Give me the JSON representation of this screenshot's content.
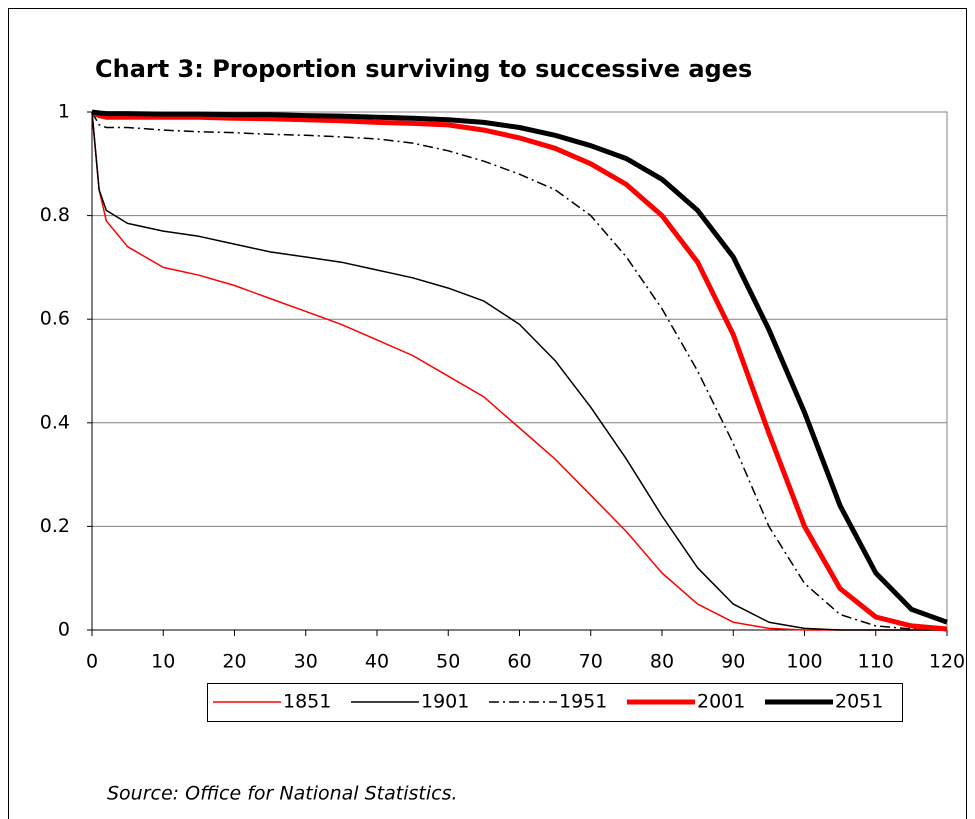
{
  "chart_data": {
    "type": "line",
    "title": "Chart 3: Proportion surviving to successive ages",
    "source": "Source: Office for National Statistics.",
    "x": [
      0,
      1,
      2,
      5,
      10,
      15,
      20,
      25,
      30,
      35,
      40,
      45,
      50,
      55,
      60,
      65,
      70,
      75,
      80,
      85,
      90,
      95,
      100,
      105,
      110,
      115,
      120
    ],
    "series": [
      {
        "name": "1851",
        "color": "#ff0000",
        "style": "solid",
        "weight": "thin",
        "values": [
          1,
          0.85,
          0.79,
          0.74,
          0.7,
          0.685,
          0.665,
          0.64,
          0.615,
          0.59,
          0.56,
          0.53,
          0.49,
          0.45,
          0.39,
          0.33,
          0.26,
          0.19,
          0.11,
          0.05,
          0.015,
          0.003,
          0,
          0,
          0,
          0,
          0
        ]
      },
      {
        "name": "1901",
        "color": "#000000",
        "style": "solid",
        "weight": "thin",
        "values": [
          1,
          0.85,
          0.81,
          0.785,
          0.77,
          0.76,
          0.745,
          0.73,
          0.72,
          0.71,
          0.695,
          0.68,
          0.66,
          0.635,
          0.59,
          0.52,
          0.43,
          0.33,
          0.22,
          0.12,
          0.05,
          0.015,
          0.003,
          0,
          0,
          0,
          0
        ]
      },
      {
        "name": "1951",
        "color": "#000000",
        "style": "dashdot",
        "weight": "thin",
        "values": [
          1,
          0.975,
          0.97,
          0.97,
          0.965,
          0.962,
          0.96,
          0.957,
          0.955,
          0.952,
          0.948,
          0.94,
          0.925,
          0.905,
          0.88,
          0.85,
          0.8,
          0.72,
          0.62,
          0.5,
          0.36,
          0.2,
          0.09,
          0.03,
          0.008,
          0.002,
          0
        ]
      },
      {
        "name": "2001",
        "color": "#ff0000",
        "style": "solid",
        "weight": "thick",
        "values": [
          1,
          0.993,
          0.99,
          0.99,
          0.99,
          0.99,
          0.988,
          0.987,
          0.985,
          0.983,
          0.98,
          0.978,
          0.975,
          0.965,
          0.95,
          0.93,
          0.9,
          0.86,
          0.8,
          0.71,
          0.57,
          0.38,
          0.2,
          0.08,
          0.025,
          0.008,
          0.002
        ]
      },
      {
        "name": "2051",
        "color": "#000000",
        "style": "solid",
        "weight": "thick",
        "values": [
          1,
          0.998,
          0.997,
          0.997,
          0.996,
          0.996,
          0.995,
          0.995,
          0.993,
          0.992,
          0.99,
          0.988,
          0.985,
          0.98,
          0.97,
          0.955,
          0.935,
          0.91,
          0.87,
          0.81,
          0.72,
          0.58,
          0.42,
          0.24,
          0.11,
          0.04,
          0.015
        ]
      }
    ],
    "xlim": [
      0,
      120
    ],
    "xticks": [
      0,
      10,
      20,
      30,
      40,
      50,
      60,
      70,
      80,
      90,
      100,
      110,
      120
    ],
    "ylim": [
      0,
      1
    ],
    "yticks": [
      0,
      0.2,
      0.4,
      0.6,
      0.8,
      1
    ],
    "grid": true,
    "legend": "bottom"
  }
}
